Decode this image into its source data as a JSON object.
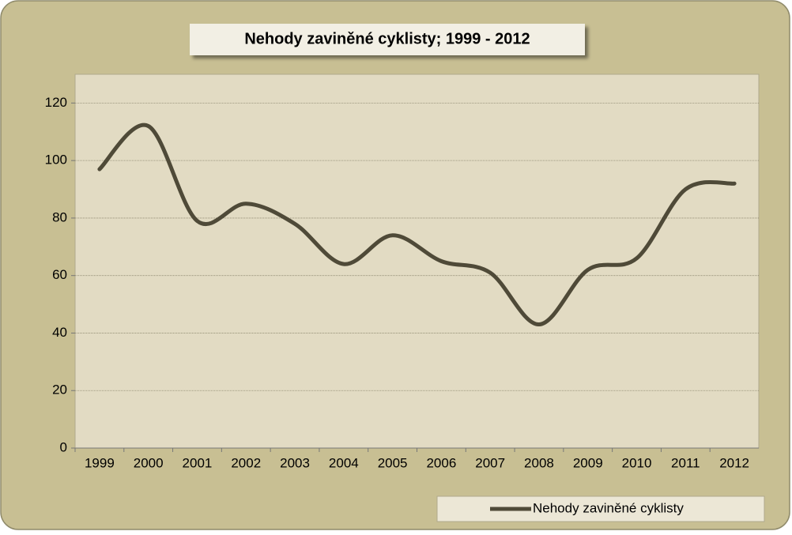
{
  "chart_data": {
    "type": "line",
    "title": "Nehody zaviněné cyklisty; 1999 - 2012",
    "categories": [
      "1999",
      "2000",
      "2001",
      "2002",
      "2003",
      "2004",
      "2005",
      "2006",
      "2007",
      "2008",
      "2009",
      "2010",
      "2011",
      "2012"
    ],
    "series": [
      {
        "name": "Nehody zaviněné cyklisty",
        "color": "#4f4a38",
        "values": [
          97,
          112,
          79,
          85,
          78,
          64,
          74,
          65,
          61,
          43,
          62,
          66,
          90,
          92
        ]
      }
    ],
    "ylim": [
      0,
      130
    ],
    "yticks": [
      0,
      20,
      40,
      60,
      80,
      100,
      120
    ],
    "grid": true,
    "smooth": true,
    "legend": "bottom-right"
  }
}
